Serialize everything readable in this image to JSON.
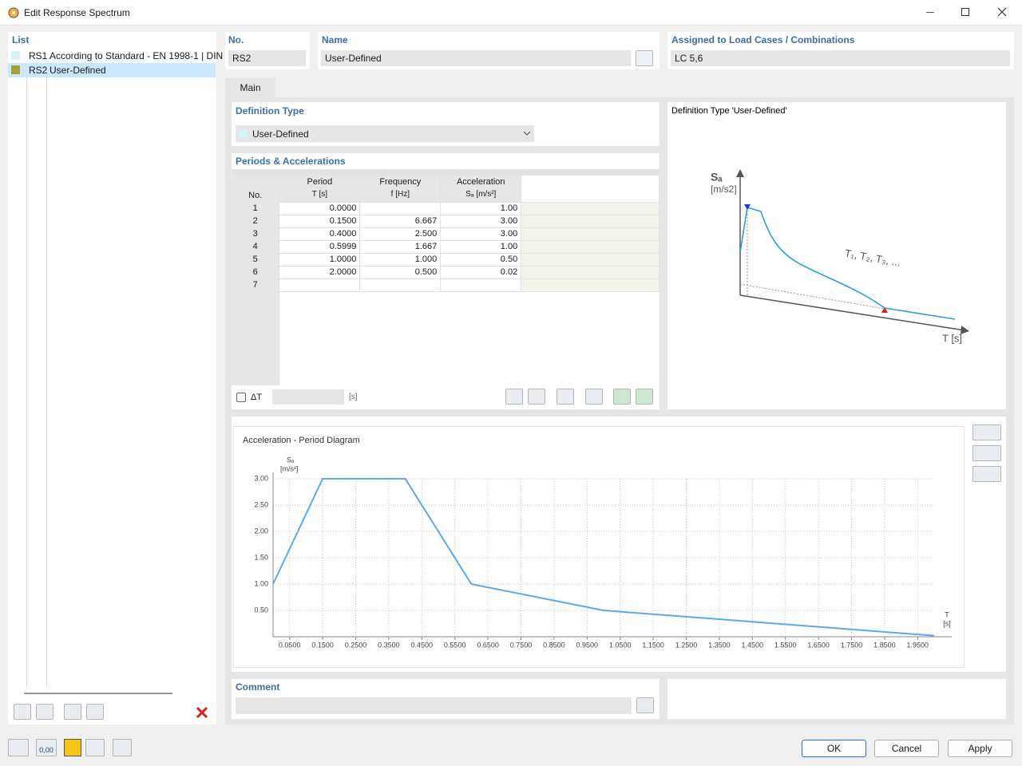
{
  "window": {
    "title": "Edit Response Spectrum"
  },
  "list": {
    "header": "List",
    "items": [
      {
        "id": "RS1",
        "label": "According to Standard - EN 1998-1 | DIN",
        "color": "#d6f3f7"
      },
      {
        "id": "RS2",
        "label": "User-Defined",
        "color": "#a4a33a"
      }
    ]
  },
  "fields": {
    "no_label": "No.",
    "no_value": "RS2",
    "name_label": "Name",
    "name_value": "User-Defined",
    "assigned_label": "Assigned to Load Cases / Combinations",
    "assigned_value": "LC 5,6"
  },
  "tab": "Main",
  "definition_type": {
    "label": "Definition Type",
    "value": "User-Defined"
  },
  "table": {
    "title": "Periods & Accelerations",
    "columns": [
      {
        "title": "No."
      },
      {
        "title": "Period",
        "unit": "T [s]"
      },
      {
        "title": "Frequency",
        "unit": "f [Hz]"
      },
      {
        "title": "Acceleration",
        "unit": "Sₐ [m/s²]"
      }
    ],
    "rows": [
      [
        "1",
        "0.0000",
        null,
        "1.00"
      ],
      [
        "2",
        "0.1500",
        "6.667",
        "3.00"
      ],
      [
        "3",
        "0.4000",
        "2.500",
        "3.00"
      ],
      [
        "4",
        "0.5999",
        "1.667",
        "1.00"
      ],
      [
        "5",
        "1.0000",
        "1.000",
        "0.50"
      ],
      [
        "6",
        "2.0000",
        "0.500",
        "0.02"
      ],
      [
        "7",
        null,
        null,
        null
      ]
    ]
  },
  "delta_t": {
    "label": "ΔT",
    "unit": "[s]"
  },
  "illustration": {
    "title": "Definition Type 'User-Defined'",
    "y_label": "Sₐ",
    "y_unit": "[m/s2]",
    "x_label": "T [s]",
    "annotation": "T₁, T₂, T₃, ..."
  },
  "chart_data": {
    "type": "line",
    "title": "Acceleration - Period Diagram",
    "y_label": "Sₐ",
    "y_unit": "[m/s²]",
    "x_label": "T",
    "x_unit": "[s]",
    "x": [
      0,
      0.15,
      0.4,
      0.5999,
      1.0,
      2.0
    ],
    "series": [
      {
        "color": "#5aaaea",
        "values": [
          1.0,
          3.0,
          3.0,
          1.0,
          0.5,
          0.02
        ]
      }
    ],
    "xlim": [
      0,
      2.0
    ],
    "ylim": [
      0,
      3.0
    ],
    "xticks": [
      {
        "value": 0.05,
        "label": "0.0500"
      },
      {
        "value": 0.15,
        "label": "0.1500"
      },
      {
        "value": 0.25,
        "label": "0.2500"
      },
      {
        "value": 0.35,
        "label": "0.3500"
      },
      {
        "value": 0.45,
        "label": "0.4500"
      },
      {
        "value": 0.55,
        "label": "0.5500"
      },
      {
        "value": 0.65,
        "label": "0.6500"
      },
      {
        "value": 0.75,
        "label": "0.7500"
      },
      {
        "value": 0.85,
        "label": "0.8500"
      },
      {
        "value": 0.95,
        "label": "0.9500"
      },
      {
        "value": 1.05,
        "label": "1.0500"
      },
      {
        "value": 1.15,
        "label": "1.1500"
      },
      {
        "value": 1.25,
        "label": "1.2500"
      },
      {
        "value": 1.35,
        "label": "1.3500"
      },
      {
        "value": 1.45,
        "label": "1.4500"
      },
      {
        "value": 1.55,
        "label": "1.5500"
      },
      {
        "value": 1.65,
        "label": "1.6500"
      },
      {
        "value": 1.75,
        "label": "1.7500"
      },
      {
        "value": 1.85,
        "label": "1.8500"
      },
      {
        "value": 1.95,
        "label": "1.9500"
      }
    ],
    "yticks": [
      {
        "value": 0.5,
        "label": "0.50"
      },
      {
        "value": 1.0,
        "label": "1.00"
      },
      {
        "value": 1.5,
        "label": "1.50"
      },
      {
        "value": 2.0,
        "label": "2.00"
      },
      {
        "value": 2.5,
        "label": "2.50"
      },
      {
        "value": 3.0,
        "label": "3.00"
      }
    ],
    "grid": true
  },
  "comment": {
    "label": "Comment"
  },
  "toolbar": {
    "units_icon": "0,00"
  },
  "buttons": {
    "ok": "OK",
    "cancel": "Cancel",
    "apply": "Apply"
  }
}
